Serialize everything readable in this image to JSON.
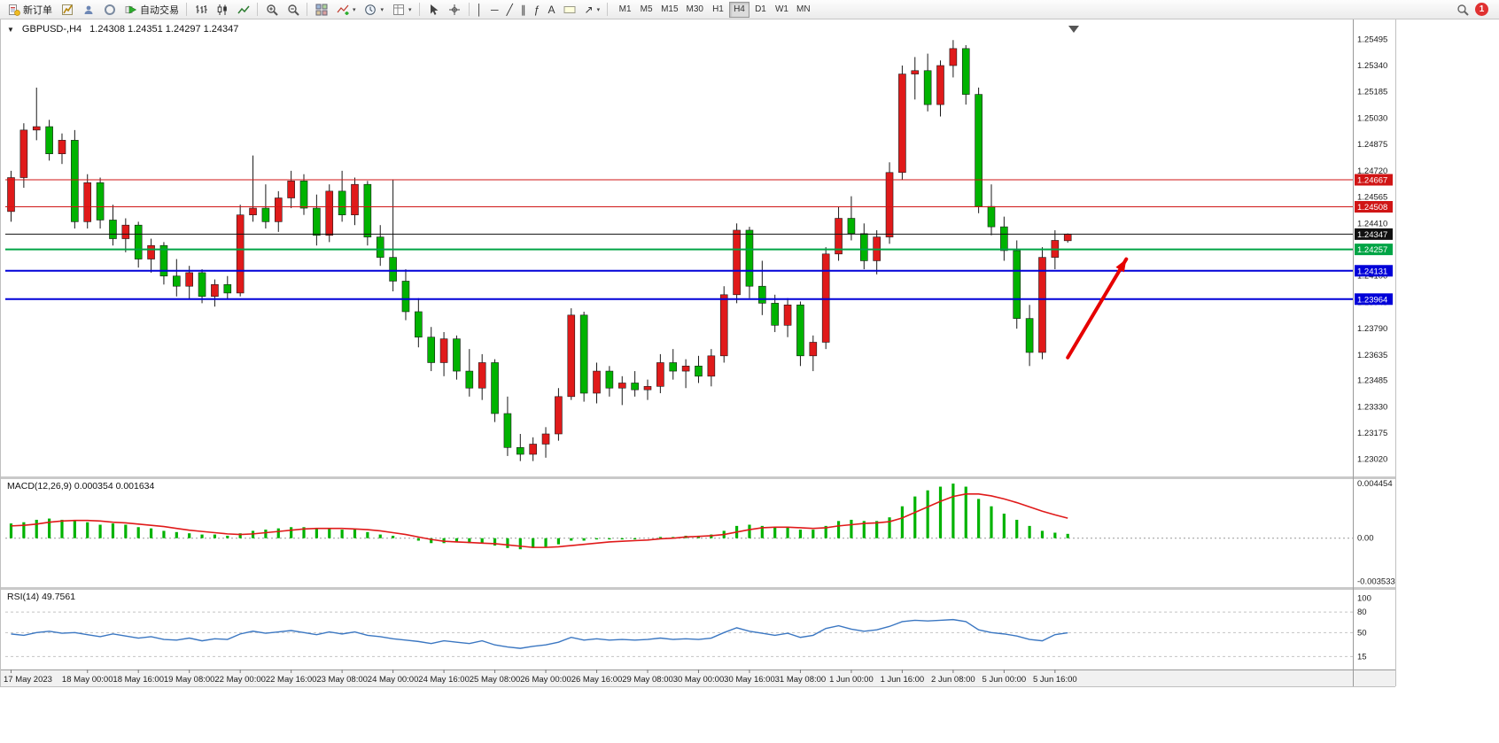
{
  "toolbar": {
    "new_order_label": "新订单",
    "auto_trading_label": "自动交易",
    "timeframes": [
      "M1",
      "M5",
      "M15",
      "M30",
      "H1",
      "H4",
      "D1",
      "W1",
      "MN"
    ],
    "active_timeframe": "H4",
    "notification_count": "1"
  },
  "icons": {
    "dropdown": "▾",
    "one_click_trading": "▼",
    "vertical_line": "│",
    "horizontal_line": "─",
    "trendline": "╱",
    "channel": "∥",
    "fibonacci": "ƒ",
    "text_tool": "A",
    "arrow_tool": "↗"
  },
  "chart": {
    "title": "GBPUSD-,H4",
    "ohlc": "1.24308 1.24351 1.24297 1.24347",
    "price_ticks": [
      "1.25495",
      "1.25340",
      "1.25185",
      "1.25030",
      "1.24875",
      "1.24720",
      "1.24565",
      "1.24410",
      "1.24255",
      "1.24100",
      "1.23945",
      "1.23790",
      "1.23635",
      "1.23485",
      "1.23330",
      "1.23175",
      "1.23020"
    ],
    "hlines": [
      {
        "price": 1.24667,
        "label": "1.24667",
        "color": "#d01515",
        "width": 1
      },
      {
        "price": 1.24508,
        "label": "1.24508",
        "color": "#d01515",
        "width": 1
      },
      {
        "price": 1.24347,
        "label": "1.24347",
        "color": "#101010",
        "width": 1
      },
      {
        "price": 1.24257,
        "label": "1.24257",
        "color": "#00a445",
        "width": 2
      },
      {
        "price": 1.24131,
        "label": "1.24131",
        "color": "#0000d8",
        "width": 2
      },
      {
        "price": 1.23964,
        "label": "1.23964",
        "color": "#0000d8",
        "width": 2
      }
    ],
    "colors": {
      "bull": "#e01a1a",
      "bear": "#00b300",
      "wick": "#1a1a1a",
      "macd_hist": "#00b300",
      "macd_signal": "#e01a1a",
      "rsi_line": "#3b77c2",
      "arrow": "#e60000"
    }
  },
  "macd_panel": {
    "label": "MACD(12,26,9) 0.000354 0.001634",
    "axis": [
      "0.004454",
      "0.00",
      "-0.003533"
    ]
  },
  "rsi_panel": {
    "label": "RSI(14) 49.7561",
    "axis": [
      "100",
      "80",
      "50",
      "15"
    ],
    "levels": [
      80,
      50,
      15
    ]
  },
  "time_axis": {
    "labels": [
      "17 May 2023",
      "18 May 00:00",
      "18 May 16:00",
      "19 May 08:00",
      "22 May 00:00",
      "22 May 16:00",
      "23 May 08:00",
      "24 May 00:00",
      "24 May 16:00",
      "25 May 08:00",
      "26 May 00:00",
      "26 May 16:00",
      "29 May 08:00",
      "30 May 00:00",
      "30 May 16:00",
      "31 May 08:00",
      "1 Jun 00:00",
      "1 Jun 16:00",
      "2 Jun 08:00",
      "5 Jun 00:00",
      "5 Jun 16:00"
    ],
    "label_indices": [
      0,
      6,
      10,
      14,
      18,
      22,
      26,
      30,
      34,
      38,
      42,
      46,
      50,
      54,
      58,
      62,
      66,
      70,
      74,
      78,
      82
    ]
  },
  "chart_data": {
    "type": "candlestick",
    "symbol": "GBPUSD-",
    "timeframe": "H4",
    "y_range": [
      1.2293,
      1.2558
    ],
    "candles": [
      [
        1.2448,
        1.2472,
        1.2442,
        1.2468
      ],
      [
        1.2468,
        1.25,
        1.2462,
        1.2496
      ],
      [
        1.2496,
        1.2521,
        1.249,
        1.2498
      ],
      [
        1.2498,
        1.2502,
        1.2478,
        1.2482
      ],
      [
        1.2482,
        1.2494,
        1.2476,
        1.249
      ],
      [
        1.249,
        1.2496,
        1.2438,
        1.2442
      ],
      [
        1.2442,
        1.247,
        1.2438,
        1.2465
      ],
      [
        1.2465,
        1.2468,
        1.2438,
        1.2443
      ],
      [
        1.2443,
        1.2452,
        1.2428,
        1.2432
      ],
      [
        1.2432,
        1.2444,
        1.2424,
        1.244
      ],
      [
        1.244,
        1.2442,
        1.2415,
        1.242
      ],
      [
        1.242,
        1.2432,
        1.2412,
        1.2428
      ],
      [
        1.2428,
        1.243,
        1.2405,
        1.241
      ],
      [
        1.241,
        1.242,
        1.2398,
        1.2404
      ],
      [
        1.2404,
        1.2416,
        1.2396,
        1.2412
      ],
      [
        1.2412,
        1.2414,
        1.2394,
        1.2398
      ],
      [
        1.2398,
        1.2408,
        1.2392,
        1.2405
      ],
      [
        1.2405,
        1.241,
        1.2396,
        1.24
      ],
      [
        1.24,
        1.2452,
        1.2398,
        1.2446
      ],
      [
        1.2446,
        1.2481,
        1.2442,
        1.245
      ],
      [
        1.245,
        1.2464,
        1.2438,
        1.2442
      ],
      [
        1.2442,
        1.246,
        1.2436,
        1.2456
      ],
      [
        1.2456,
        1.2472,
        1.245,
        1.2466
      ],
      [
        1.2466,
        1.247,
        1.2446,
        1.245
      ],
      [
        1.245,
        1.2458,
        1.2428,
        1.2434
      ],
      [
        1.2434,
        1.2464,
        1.243,
        1.246
      ],
      [
        1.246,
        1.2472,
        1.2442,
        1.2446
      ],
      [
        1.2446,
        1.2468,
        1.244,
        1.2464
      ],
      [
        1.2464,
        1.2466,
        1.2428,
        1.2433
      ],
      [
        1.2433,
        1.244,
        1.2416,
        1.2421
      ],
      [
        1.2421,
        1.2467,
        1.2401,
        1.2407
      ],
      [
        1.2407,
        1.2414,
        1.2384,
        1.2389
      ],
      [
        1.2389,
        1.2397,
        1.2368,
        1.2374
      ],
      [
        1.2374,
        1.238,
        1.2354,
        1.2359
      ],
      [
        1.2359,
        1.2377,
        1.2351,
        1.2373
      ],
      [
        1.2373,
        1.2375,
        1.2349,
        1.2354
      ],
      [
        1.2354,
        1.2367,
        1.2339,
        1.2344
      ],
      [
        1.2344,
        1.2364,
        1.2337,
        1.2359
      ],
      [
        1.2359,
        1.2361,
        1.2324,
        1.2329
      ],
      [
        1.2329,
        1.2339,
        1.2304,
        1.2309
      ],
      [
        1.2309,
        1.2317,
        1.2301,
        1.2305
      ],
      [
        1.2305,
        1.2315,
        1.2301,
        1.2311
      ],
      [
        1.2311,
        1.2321,
        1.2303,
        1.2317
      ],
      [
        1.2317,
        1.2344,
        1.2313,
        1.2339
      ],
      [
        1.2339,
        1.2391,
        1.2337,
        1.2387
      ],
      [
        1.2387,
        1.2389,
        1.2336,
        1.2341
      ],
      [
        1.2341,
        1.2359,
        1.2335,
        1.2354
      ],
      [
        1.2354,
        1.2357,
        1.2339,
        1.2344
      ],
      [
        1.2344,
        1.2351,
        1.2334,
        1.2347
      ],
      [
        1.2347,
        1.2354,
        1.2339,
        1.2343
      ],
      [
        1.2343,
        1.2349,
        1.2337,
        1.2345
      ],
      [
        1.2345,
        1.2364,
        1.2341,
        1.2359
      ],
      [
        1.2359,
        1.2367,
        1.2349,
        1.2354
      ],
      [
        1.2354,
        1.2361,
        1.2344,
        1.2357
      ],
      [
        1.2357,
        1.2363,
        1.2347,
        1.2351
      ],
      [
        1.2351,
        1.2367,
        1.2345,
        1.2363
      ],
      [
        1.2363,
        1.2404,
        1.2359,
        1.2399
      ],
      [
        1.2399,
        1.2441,
        1.2394,
        1.2437
      ],
      [
        1.2437,
        1.2439,
        1.2397,
        1.2404
      ],
      [
        1.2404,
        1.2419,
        1.2387,
        1.2394
      ],
      [
        1.2394,
        1.2399,
        1.2377,
        1.2381
      ],
      [
        1.2381,
        1.2397,
        1.2374,
        1.2393
      ],
      [
        1.2393,
        1.2395,
        1.2357,
        1.2363
      ],
      [
        1.2363,
        1.2375,
        1.2354,
        1.2371
      ],
      [
        1.2371,
        1.2427,
        1.2367,
        1.2423
      ],
      [
        1.2423,
        1.2451,
        1.2419,
        1.2444
      ],
      [
        1.2444,
        1.2457,
        1.2431,
        1.2435
      ],
      [
        1.2435,
        1.2441,
        1.2414,
        1.2419
      ],
      [
        1.2419,
        1.2437,
        1.2411,
        1.2433
      ],
      [
        1.2433,
        1.2477,
        1.2429,
        1.2471
      ],
      [
        1.2471,
        1.2534,
        1.2467,
        1.2529
      ],
      [
        1.2529,
        1.2539,
        1.2514,
        1.2531
      ],
      [
        1.2531,
        1.2541,
        1.2507,
        1.2511
      ],
      [
        1.2511,
        1.2537,
        1.2504,
        1.2534
      ],
      [
        1.2534,
        1.2549,
        1.2527,
        1.2544
      ],
      [
        1.2544,
        1.2546,
        1.2511,
        1.2517
      ],
      [
        1.2517,
        1.2521,
        1.2447,
        1.2451
      ],
      [
        1.2451,
        1.2464,
        1.2434,
        1.2439
      ],
      [
        1.2439,
        1.2445,
        1.2419,
        1.2425
      ],
      [
        1.2425,
        1.2431,
        1.2379,
        1.2385
      ],
      [
        1.2385,
        1.2393,
        1.2357,
        1.2365
      ],
      [
        1.2365,
        1.2427,
        1.2361,
        1.2421
      ],
      [
        1.2421,
        1.2437,
        1.2414,
        1.2431
      ],
      [
        1.24308,
        1.24351,
        1.24297,
        1.24347
      ]
    ],
    "macd": {
      "range": [
        -0.0037,
        0.0046
      ],
      "scale": 0.001,
      "histogram": [
        1.2,
        1.3,
        1.5,
        1.6,
        1.5,
        1.4,
        1.3,
        1.1,
        1.2,
        1.1,
        0.9,
        0.8,
        0.6,
        0.5,
        0.4,
        0.3,
        0.3,
        0.2,
        0.4,
        0.6,
        0.7,
        0.8,
        0.9,
        0.9,
        0.8,
        0.8,
        0.7,
        0.7,
        0.5,
        0.3,
        0.2,
        0,
        -0.2,
        -0.4,
        -0.4,
        -0.3,
        -0.4,
        -0.4,
        -0.6,
        -0.8,
        -0.9,
        -0.8,
        -0.7,
        -0.5,
        -0.2,
        -0.2,
        -0.1,
        -0.1,
        -0.1,
        -0.1,
        0,
        0.1,
        0.1,
        0.2,
        0.2,
        0.3,
        0.6,
        1,
        1.1,
        1,
        0.9,
        0.9,
        0.7,
        0.7,
        1,
        1.4,
        1.5,
        1.4,
        1.4,
        1.7,
        2.6,
        3.4,
        3.9,
        4.2,
        4.45,
        4.2,
        3.2,
        2.6,
        2,
        1.5,
        1,
        0.6,
        0.45,
        0.354
      ],
      "signal": [
        1,
        1.05,
        1.15,
        1.3,
        1.4,
        1.45,
        1.45,
        1.4,
        1.3,
        1.25,
        1.15,
        1.05,
        0.95,
        0.8,
        0.65,
        0.55,
        0.45,
        0.35,
        0.3,
        0.35,
        0.45,
        0.55,
        0.65,
        0.75,
        0.8,
        0.8,
        0.8,
        0.75,
        0.7,
        0.6,
        0.45,
        0.3,
        0.1,
        -0.1,
        -0.25,
        -0.3,
        -0.35,
        -0.4,
        -0.45,
        -0.55,
        -0.65,
        -0.75,
        -0.75,
        -0.7,
        -0.6,
        -0.5,
        -0.4,
        -0.3,
        -0.25,
        -0.2,
        -0.15,
        -0.05,
        0,
        0.1,
        0.15,
        0.2,
        0.3,
        0.5,
        0.7,
        0.85,
        0.9,
        0.9,
        0.85,
        0.8,
        0.85,
        1,
        1.1,
        1.2,
        1.25,
        1.35,
        1.65,
        2.1,
        2.55,
        3,
        3.4,
        3.6,
        3.6,
        3.45,
        3.2,
        2.9,
        2.55,
        2.2,
        1.9,
        1.634
      ]
    },
    "rsi": {
      "range": [
        0,
        106
      ],
      "values": [
        48,
        46,
        50,
        52,
        49,
        50,
        47,
        44,
        48,
        45,
        42,
        44,
        40,
        39,
        42,
        38,
        41,
        40,
        48,
        52,
        49,
        51,
        53,
        50,
        47,
        51,
        48,
        51,
        46,
        44,
        41,
        39,
        37,
        34,
        38,
        36,
        34,
        38,
        32,
        29,
        27,
        30,
        32,
        36,
        43,
        39,
        41,
        39,
        40,
        39,
        40,
        42,
        40,
        41,
        40,
        42,
        50,
        57,
        52,
        49,
        46,
        49,
        43,
        46,
        56,
        60,
        55,
        52,
        54,
        59,
        66,
        68,
        67,
        68,
        69,
        66,
        54,
        50,
        48,
        45,
        40,
        38,
        47,
        49.7561
      ]
    },
    "arrow": {
      "from_index": 83,
      "from_price": 1.2362,
      "to_index": 87.6,
      "to_price": 1.242
    }
  }
}
